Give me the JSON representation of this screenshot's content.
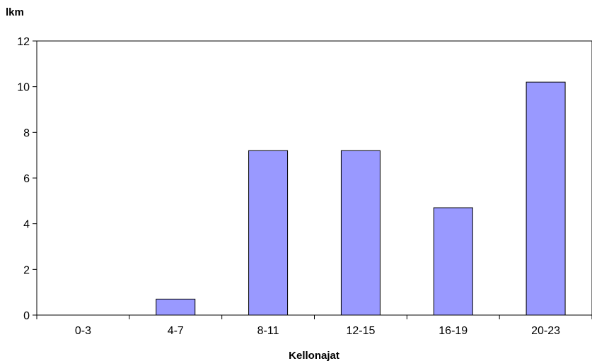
{
  "chart_data": {
    "type": "bar",
    "title": "",
    "xlabel": "Kellonajat",
    "ylabel": "lkm",
    "categories": [
      "0-3",
      "4-7",
      "8-11",
      "12-15",
      "16-19",
      "20-23"
    ],
    "values": [
      0,
      0.7,
      7.2,
      7.2,
      4.7,
      10.2
    ],
    "ylim": [
      0,
      12
    ],
    "yticks": [
      0,
      2,
      4,
      6,
      8,
      10,
      12
    ],
    "grid": false,
    "legend": "none",
    "bar_color": "#9999ff",
    "bar_stroke": "#000000"
  }
}
